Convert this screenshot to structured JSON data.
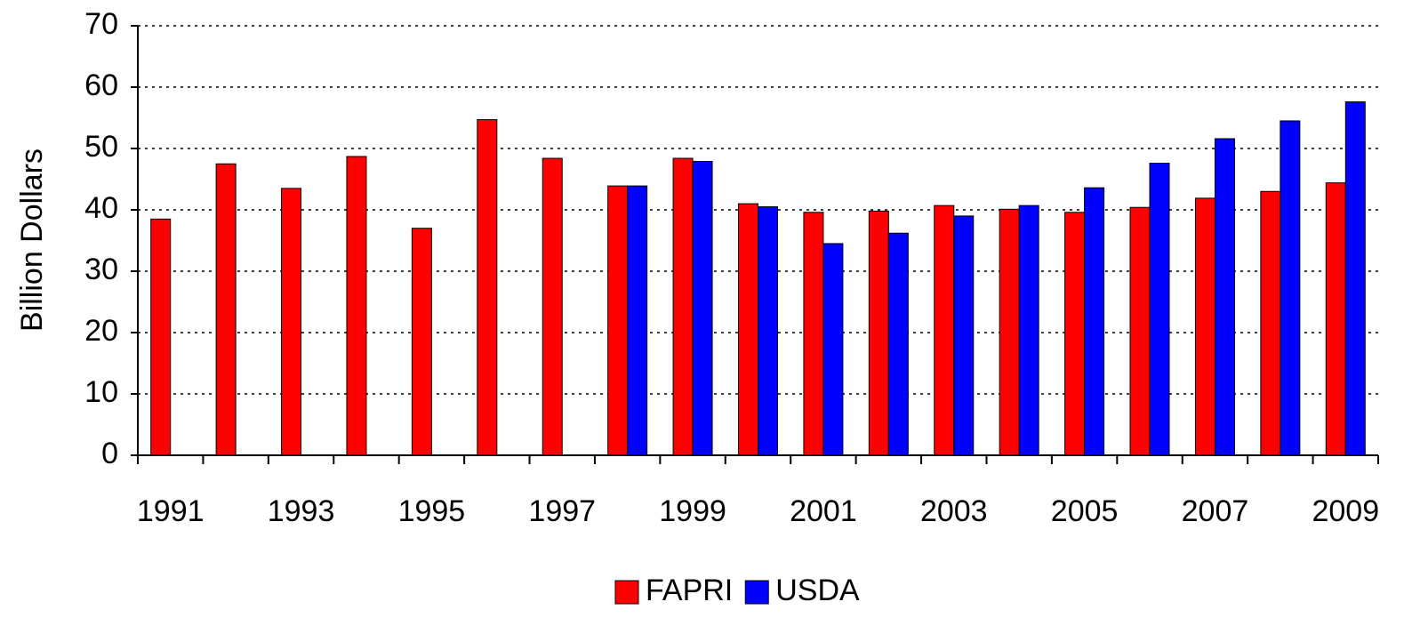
{
  "chart_data": {
    "type": "bar",
    "y_label": "Billion Dollars",
    "categories": [
      "1991",
      null,
      "1993",
      null,
      "1995",
      null,
      "1997",
      null,
      "1999",
      null,
      "2001",
      null,
      "2003",
      null,
      "2005",
      null,
      "2007",
      null,
      "2009"
    ],
    "series": [
      {
        "name": "FAPRI",
        "color": "#ff0000",
        "values": [
          38.5,
          47.5,
          43.5,
          48.7,
          37,
          54.7,
          48.4,
          43.9,
          48.4,
          41,
          39.6,
          39.8,
          40.7,
          40.1,
          39.6,
          40.4,
          41.9,
          43,
          44.4
        ]
      },
      {
        "name": "USDA",
        "color": "#0000ff",
        "values": [
          null,
          null,
          null,
          null,
          null,
          null,
          null,
          43.9,
          47.9,
          40.5,
          34.5,
          36.2,
          39,
          40.7,
          43.6,
          47.6,
          51.6,
          54.5,
          57.6
        ]
      }
    ],
    "ylim": [
      0,
      70
    ],
    "yticks": [
      0,
      10,
      20,
      30,
      40,
      50,
      60,
      70
    ],
    "grid": true,
    "legend": "bottom"
  }
}
